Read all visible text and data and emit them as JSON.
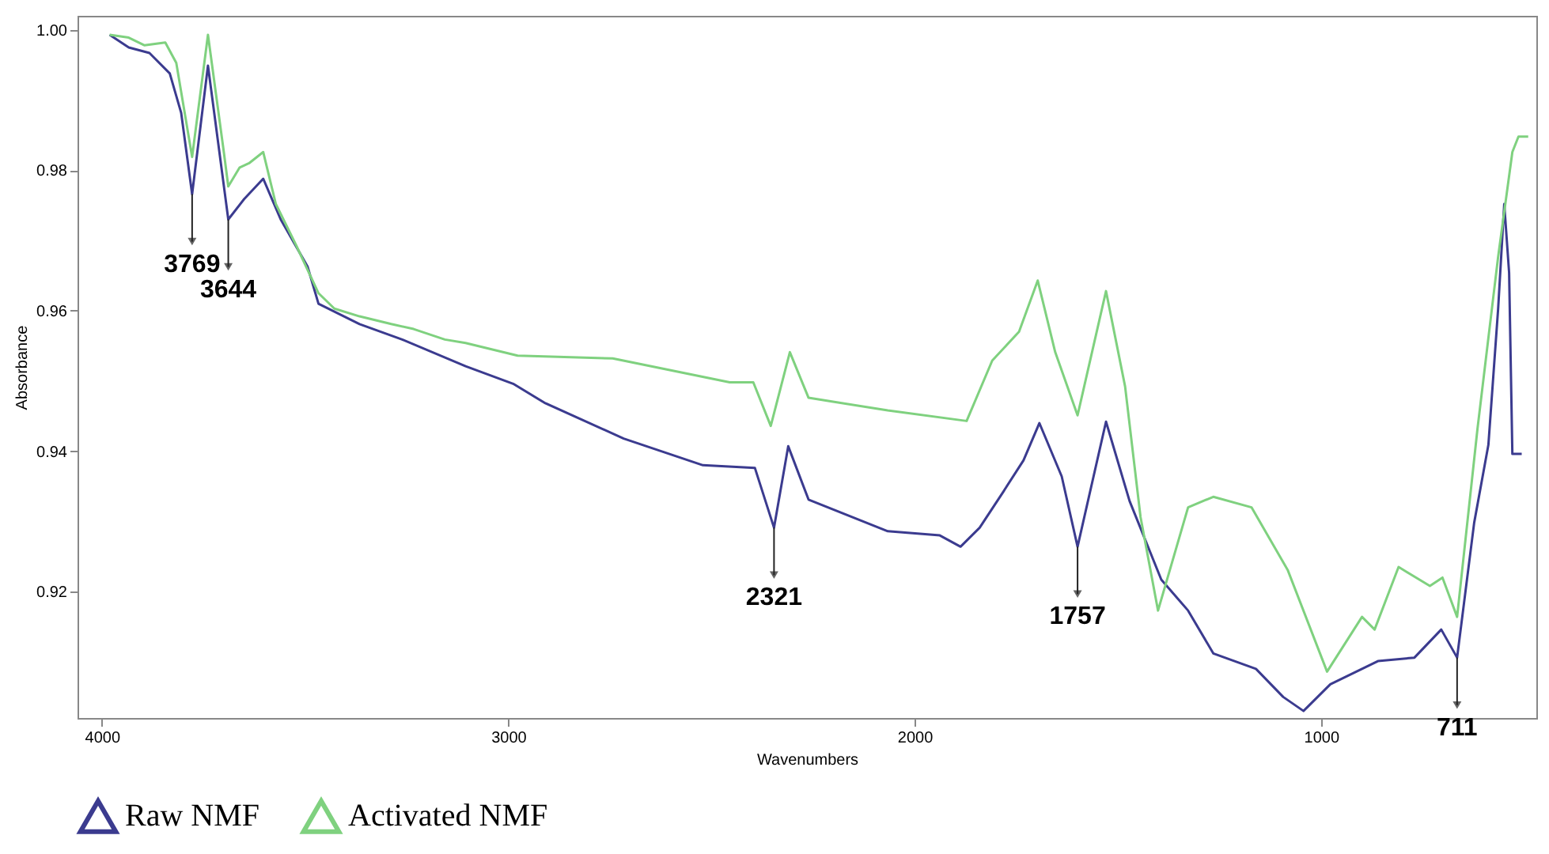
{
  "chart_data": {
    "type": "line",
    "xlabel": "Wavenumbers",
    "ylabel": "Absorbance",
    "xlim": [
      4060,
      470
    ],
    "ylim": [
      0.902,
      1.002
    ],
    "xticks": [
      4000,
      3000,
      2000,
      1000
    ],
    "yticks": [
      0.92,
      0.94,
      0.96,
      0.98,
      {
        "value": 1.0,
        "label": "1.00"
      }
    ],
    "grid": false,
    "legend": "bottom",
    "marker": "none",
    "line_style": "solid",
    "series": [
      {
        "name": "Raw NMF",
        "color": "#3b3b8f",
        "x": [
          3981,
          3934,
          3883,
          3833,
          3805,
          3778,
          3739,
          3689,
          3650,
          3603,
          3560,
          3494,
          3467,
          3366,
          3261,
          3105,
          2988,
          2911,
          2716,
          2521,
          2393,
          2346,
          2311,
          2261,
          2066,
          1938,
          1887,
          1840,
          1782,
          1732,
          1693,
          1638,
          1599,
          1529,
          1471,
          1393,
          1327,
          1265,
          1160,
          1093,
          1043,
          977,
          860,
          770,
          704,
          665,
          623,
          588,
          564,
          549,
          537,
          529,
          506
        ],
        "values": [
          0.9993,
          0.9975,
          0.9967,
          0.9938,
          0.9882,
          0.9766,
          0.9949,
          0.973,
          0.9759,
          0.9788,
          0.973,
          0.9663,
          0.961,
          0.9581,
          0.9559,
          0.9521,
          0.9496,
          0.9469,
          0.9418,
          0.938,
          0.9376,
          0.9291,
          0.9407,
          0.9331,
          0.9286,
          0.928,
          0.9264,
          0.9291,
          0.9342,
          0.9387,
          0.944,
          0.9364,
          0.9264,
          0.9442,
          0.9329,
          0.9217,
          0.9173,
          0.9112,
          0.909,
          0.905,
          0.903,
          0.9068,
          0.9101,
          0.9106,
          0.9146,
          0.9106,
          0.9298,
          0.9409,
          0.9603,
          0.9752,
          0.9654,
          0.9396,
          0.9396
        ]
      },
      {
        "name": "Activated NMF",
        "color": "#7fd17f",
        "x": [
          3981,
          3934,
          3895,
          3844,
          3817,
          3778,
          3739,
          3700,
          3689,
          3661,
          3638,
          3603,
          3572,
          3521,
          3467,
          3428,
          3366,
          3288,
          3233,
          3156,
          3105,
          2977,
          2743,
          2455,
          2397,
          2354,
          2307,
          2261,
          2066,
          1872,
          1809,
          1743,
          1697,
          1654,
          1599,
          1529,
          1482,
          1444,
          1401,
          1327,
          1265,
          1171,
          1082,
          985,
          899,
          868,
          809,
          732,
          701,
          665,
          615,
          564,
          529,
          514,
          490
        ],
        "values": [
          0.9993,
          0.9989,
          0.9978,
          0.9982,
          0.9953,
          0.9819,
          0.9993,
          0.9826,
          0.9777,
          0.9804,
          0.981,
          0.9826,
          0.9752,
          0.9692,
          0.9625,
          0.9603,
          0.9592,
          0.9581,
          0.9574,
          0.9559,
          0.9554,
          0.9536,
          0.9532,
          0.9498,
          0.9498,
          0.9436,
          0.9541,
          0.9476,
          0.9458,
          0.9443,
          0.9529,
          0.957,
          0.9643,
          0.9541,
          0.9451,
          0.9628,
          0.9492,
          0.9306,
          0.9173,
          0.932,
          0.9335,
          0.932,
          0.9231,
          0.9086,
          0.9164,
          0.9146,
          0.9235,
          0.9208,
          0.922,
          0.9164,
          0.9431,
          0.9677,
          0.9826,
          0.9848,
          0.9848
        ]
      }
    ],
    "annotations": [
      {
        "text": "3769",
        "x": 3778,
        "y": 0.9766
      },
      {
        "text": "3644",
        "x": 3689,
        "y": 0.973
      },
      {
        "text": "2321",
        "x": 2346,
        "y": 0.9291
      },
      {
        "text": "1757",
        "x": 1599,
        "y": 0.9264
      },
      {
        "text": "711",
        "x": 665,
        "y": 0.9106
      }
    ]
  }
}
